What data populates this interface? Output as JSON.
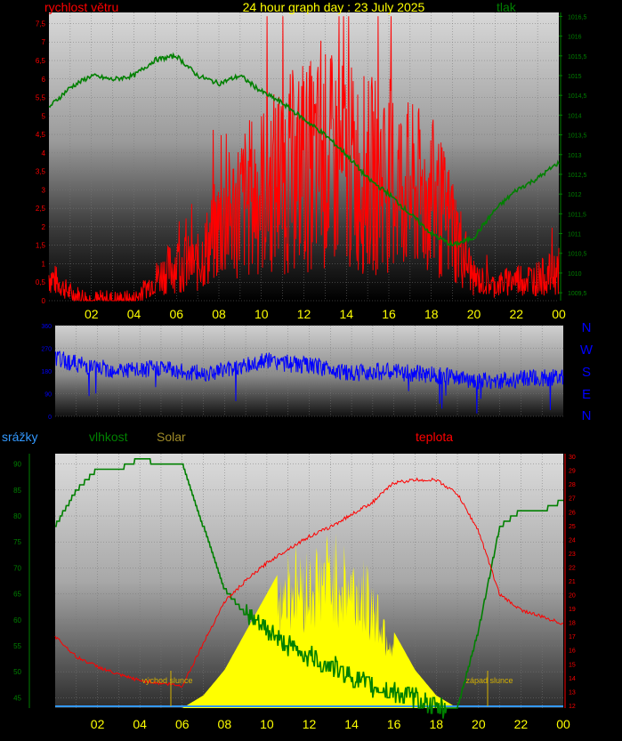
{
  "header": {
    "title": "24 hour graph day : 23 July 2025",
    "left_label": "rychlost větru",
    "right_label": "tlak"
  },
  "wind_dir_letters": [
    "N",
    "W",
    "S",
    "E",
    "N"
  ],
  "bottom_header": {
    "label_rain": "srážky",
    "label_humidity": "vlhkost",
    "label_solar": "Solar",
    "label_temp": "teplota"
  },
  "annotations": {
    "sunrise": "východ slunce",
    "sunset": "západ slunce"
  },
  "colors": {
    "wind": "#ff0000",
    "pressure": "#008000",
    "direction": "#0000ff",
    "humidity": "#008000",
    "temperature": "#ff0000",
    "solar": "#ffff00",
    "rain": "#3399ff",
    "hour_labels": "#ffff00",
    "title": "#ffff00"
  },
  "chart_data": [
    {
      "type": "line",
      "x_ticks": [
        "02",
        "04",
        "06",
        "08",
        "10",
        "12",
        "14",
        "16",
        "18",
        "20",
        "22",
        "00"
      ],
      "y_left_ticks": [
        "0",
        "0,5",
        "1",
        "1,5",
        "2",
        "2,5",
        "3",
        "3,5",
        "4",
        "4,5",
        "5",
        "5,5",
        "6",
        "6,5",
        "7",
        "7,5"
      ],
      "y_right_ticks": [
        "1009,5",
        "1010",
        "1010,5",
        "1011",
        "1011,5",
        "1012",
        "1012,5",
        "1013",
        "1013,5",
        "1014",
        "1014,5",
        "1015",
        "1015,5",
        "1016",
        "1016,5"
      ],
      "ylim_left": [
        0,
        7.8
      ],
      "ylim_right": [
        1009.3,
        1016.6
      ],
      "x_hours": [
        0,
        1,
        2,
        3,
        4,
        5,
        6,
        7,
        8,
        9,
        10,
        11,
        12,
        13,
        14,
        15,
        16,
        17,
        18,
        19,
        20,
        21,
        22,
        23,
        24
      ],
      "series": [
        {
          "axis": "left",
          "values": [
            0.7,
            0.2,
            0,
            0,
            0,
            0.6,
            1.0,
            1.0,
            2.0,
            2.6,
            3.0,
            3.4,
            3.6,
            3.8,
            3.6,
            3.4,
            3.4,
            3.0,
            2.8,
            2.0,
            0.6,
            0.4,
            0.6,
            0.6,
            0.8
          ]
        },
        {
          "axis": "right",
          "values": [
            1014.2,
            1014.7,
            1015.0,
            1014.9,
            1015.0,
            1015.4,
            1015.5,
            1015.0,
            1014.8,
            1015.0,
            1014.6,
            1014.3,
            1013.9,
            1013.5,
            1013.0,
            1012.4,
            1012.0,
            1011.5,
            1011.0,
            1010.7,
            1010.9,
            1011.6,
            1012.1,
            1012.4,
            1012.8
          ]
        }
      ]
    },
    {
      "type": "line",
      "y_ticks": [
        "0",
        "90",
        "180",
        "270",
        "360"
      ],
      "ylim": [
        0,
        360
      ],
      "x_hours": [
        0,
        1,
        2,
        3,
        4,
        5,
        6,
        7,
        8,
        9,
        10,
        11,
        12,
        13,
        14,
        15,
        16,
        17,
        18,
        19,
        20,
        21,
        22,
        23,
        24
      ],
      "series": [
        {
          "values": [
            230,
            210,
            190,
            185,
            180,
            195,
            175,
            170,
            185,
            200,
            220,
            210,
            200,
            190,
            170,
            180,
            175,
            170,
            165,
            150,
            140,
            140,
            150,
            150,
            160
          ]
        }
      ]
    },
    {
      "type": "line",
      "x_ticks": [
        "02",
        "04",
        "06",
        "08",
        "10",
        "12",
        "14",
        "16",
        "18",
        "20",
        "22",
        "00"
      ],
      "y_left_ticks": [
        "45",
        "50",
        "55",
        "60",
        "65",
        "70",
        "75",
        "80",
        "85",
        "90"
      ],
      "y_temp_ticks": [
        "12",
        "13",
        "14",
        "15",
        "16",
        "17",
        "18",
        "19",
        "20",
        "21",
        "22",
        "23",
        "24",
        "25",
        "26",
        "27",
        "28",
        "29",
        "30"
      ],
      "ylim_left": [
        43,
        92
      ],
      "ylim_temp": [
        11.8,
        30.2
      ],
      "x_hours": [
        0,
        1,
        2,
        3,
        4,
        5,
        6,
        7,
        8,
        9,
        10,
        11,
        12,
        13,
        14,
        15,
        16,
        17,
        18,
        19,
        20,
        21,
        22,
        23,
        24
      ],
      "series": [
        {
          "axis": "temp",
          "values": [
            17.0,
            15.5,
            14.8,
            14.2,
            13.8,
            13.6,
            13.4,
            16.5,
            19.5,
            21.0,
            22.3,
            23.3,
            24.2,
            24.9,
            25.8,
            26.7,
            28.1,
            28.3,
            28.3,
            27.3,
            24.6,
            20.0,
            18.9,
            18.4,
            17.9
          ]
        },
        {
          "axis": "left",
          "values": [
            78,
            85,
            89,
            89,
            91,
            90,
            90,
            78,
            66,
            61,
            58,
            55,
            53,
            51,
            49,
            47,
            46,
            45,
            43,
            43,
            58,
            78,
            81,
            81,
            83
          ]
        },
        {
          "axis": "solar",
          "values": [
            0,
            0,
            0,
            0,
            0,
            0,
            0,
            5,
            15,
            30,
            45,
            60,
            58,
            65,
            58,
            50,
            30,
            15,
            5,
            0,
            0,
            0,
            0,
            0,
            0
          ]
        },
        {
          "axis": "rain",
          "values": [
            0,
            0,
            0,
            0,
            0,
            0,
            0,
            0,
            0,
            0,
            0,
            0,
            0,
            0,
            0,
            0,
            0,
            0,
            0,
            0,
            0,
            0,
            0,
            0,
            0
          ]
        }
      ]
    }
  ]
}
